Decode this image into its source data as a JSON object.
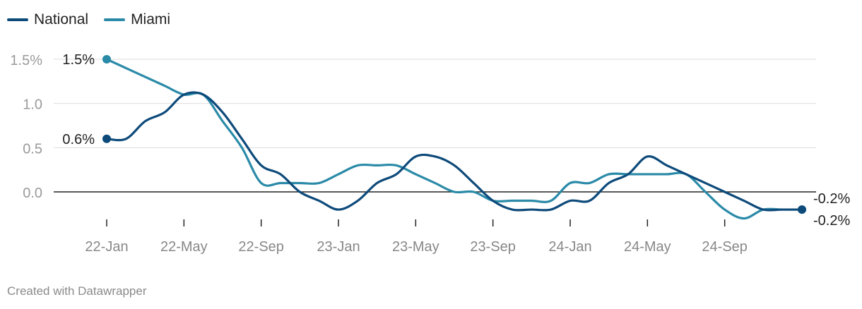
{
  "legend": {
    "national_label": "National",
    "miami_label": "Miami"
  },
  "footer": {
    "credit": "Created with Datawrapper"
  },
  "colors": {
    "national": "#0d4a7a",
    "miami": "#2a8aa8",
    "grid": "#dddddd",
    "zero": "#222222",
    "tick_text": "#9a9a9a",
    "label_text": "#222222"
  },
  "chart_data": {
    "type": "line",
    "title": "",
    "xlabel": "",
    "ylabel": "",
    "ylim": [
      -0.3,
      1.6
    ],
    "grid": true,
    "legend_position": "top-left",
    "y_ticks": [
      {
        "value": 1.5,
        "label": "1.5%"
      },
      {
        "value": 1.0,
        "label": "1.0"
      },
      {
        "value": 0.5,
        "label": "0.5"
      },
      {
        "value": 0.0,
        "label": "0.0"
      }
    ],
    "x_ticks": [
      {
        "index": 0,
        "label": "22-Jan"
      },
      {
        "index": 4,
        "label": "22-May"
      },
      {
        "index": 8,
        "label": "22-Sep"
      },
      {
        "index": 12,
        "label": "23-Jan"
      },
      {
        "index": 16,
        "label": "23-May"
      },
      {
        "index": 20,
        "label": "23-Sep"
      },
      {
        "index": 24,
        "label": "24-Jan"
      },
      {
        "index": 28,
        "label": "24-May"
      },
      {
        "index": 32,
        "label": "24-Sep"
      }
    ],
    "x": [
      "22-Jan",
      "22-Feb",
      "22-Mar",
      "22-Apr",
      "22-May",
      "22-Jun",
      "22-Jul",
      "22-Aug",
      "22-Sep",
      "22-Oct",
      "22-Nov",
      "22-Dec",
      "23-Jan",
      "23-Feb",
      "23-Mar",
      "23-Apr",
      "23-May",
      "23-Jun",
      "23-Jul",
      "23-Aug",
      "23-Sep",
      "23-Oct",
      "23-Nov",
      "23-Dec",
      "24-Jan",
      "24-Feb",
      "24-Mar",
      "24-Apr",
      "24-May",
      "24-Jun",
      "24-Jul",
      "24-Aug",
      "24-Sep",
      "24-Oct",
      "24-Nov",
      "24-Dec",
      "25-Jan"
    ],
    "series": [
      {
        "name": "National",
        "color": "#0d4a7a",
        "values": [
          0.6,
          0.6,
          0.8,
          0.9,
          1.1,
          1.1,
          0.9,
          0.6,
          0.3,
          0.2,
          0.0,
          -0.1,
          -0.2,
          -0.1,
          0.1,
          0.2,
          0.4,
          0.4,
          0.3,
          0.1,
          -0.1,
          -0.2,
          -0.2,
          -0.2,
          -0.1,
          -0.1,
          0.1,
          0.2,
          0.4,
          0.3,
          0.2,
          0.1,
          0.0,
          -0.1,
          -0.2,
          -0.2,
          -0.2
        ],
        "start_label": "0.6%",
        "end_label": "-0.2%"
      },
      {
        "name": "Miami",
        "color": "#2a8aa8",
        "values": [
          1.5,
          1.4,
          1.3,
          1.2,
          1.1,
          1.1,
          0.8,
          0.5,
          0.1,
          0.1,
          0.1,
          0.1,
          0.2,
          0.3,
          0.3,
          0.3,
          0.2,
          0.1,
          0.0,
          0.0,
          -0.1,
          -0.1,
          -0.1,
          -0.1,
          0.1,
          0.1,
          0.2,
          0.2,
          0.2,
          0.2,
          0.2,
          0.0,
          -0.2,
          -0.3,
          -0.2,
          -0.2,
          -0.2
        ],
        "start_label": "1.5%",
        "end_label": "-0.2%"
      }
    ]
  }
}
